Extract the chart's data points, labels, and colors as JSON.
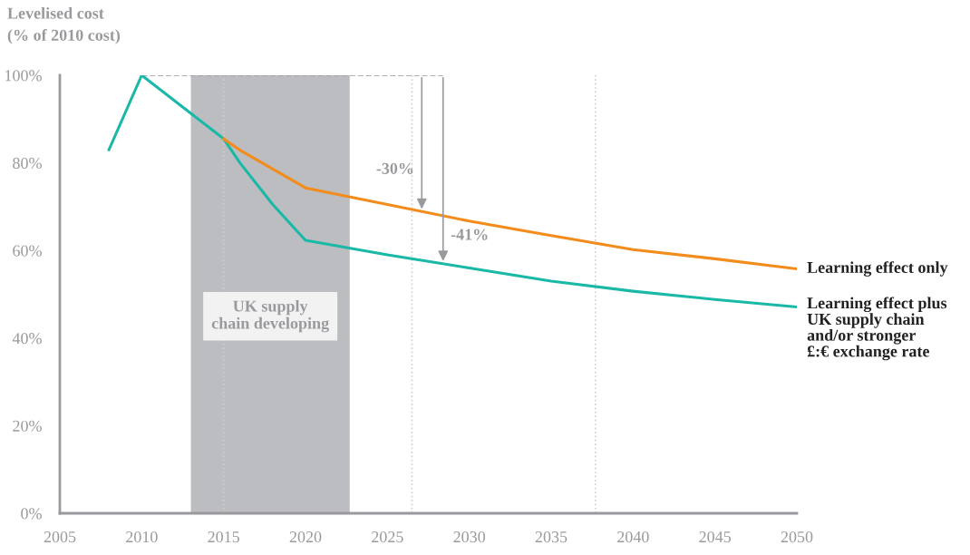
{
  "chart_data": {
    "type": "line",
    "ylabel": "Levelised cost\n(% of 2010 cost)",
    "xlim": [
      2005,
      2050
    ],
    "xticks": [
      2005,
      2010,
      2015,
      2020,
      2025,
      2030,
      2035,
      2040,
      2045,
      2050
    ],
    "ylim": [
      0,
      100
    ],
    "yticks": [
      {
        "value": 0,
        "label": "0%"
      },
      {
        "value": 20,
        "label": "20%"
      },
      {
        "value": 40,
        "label": "40%"
      },
      {
        "value": 60,
        "label": "60%"
      },
      {
        "value": 80,
        "label": "80%"
      },
      {
        "value": 100,
        "label": "100%"
      }
    ],
    "series": [
      {
        "name": "Learning effect plus\nUK supply chain\nand/or stronger\n£:€ exchange rate",
        "color": "#1ab8a6",
        "x": [
          2008,
          2010,
          2015,
          2016,
          2018,
          2020,
          2025,
          2030,
          2035,
          2040,
          2045,
          2050
        ],
        "values": [
          83,
          100,
          85.5,
          80,
          70.5,
          62.3,
          59,
          56,
          53,
          50.7,
          48.8,
          47.1
        ]
      },
      {
        "name": "Learning effect only",
        "color": "#f28c1c",
        "x": [
          2015,
          2016,
          2020,
          2025,
          2030,
          2035,
          2040,
          2045,
          2050
        ],
        "values": [
          85.5,
          82.9,
          74.3,
          70.5,
          66.7,
          63.4,
          60.2,
          58.1,
          55.8
        ]
      }
    ],
    "bands": [
      {
        "axis": "x",
        "from": 2013,
        "to": 2022.7,
        "label": "UK supply\nchain developing",
        "color": "#bcbdc0"
      }
    ],
    "ref_lines": [
      {
        "axis": "x",
        "value": 2015,
        "color": "#d0d0d3",
        "line_style": "dotted"
      },
      {
        "axis": "x",
        "value": 2026.5,
        "color": "#d0d0d3",
        "line_style": "dotted"
      },
      {
        "axis": "x",
        "value": 2037.7,
        "color": "#d0d0d3",
        "line_style": "dotted"
      }
    ],
    "annotations": [
      {
        "text": "-30%",
        "x": 2027.1,
        "y": 68.9
      },
      {
        "text": "-41%",
        "x": 2028.4,
        "y": 57
      }
    ],
    "grid": false,
    "legend": false,
    "marker": "none",
    "line_style": "solid"
  }
}
